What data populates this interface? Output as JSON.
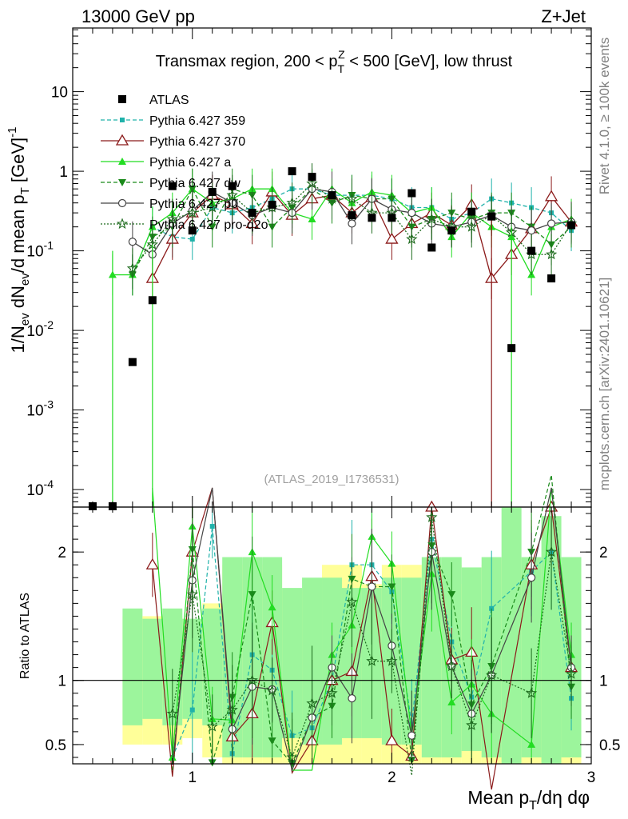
{
  "header": {
    "energy_label": "13000 GeV pp",
    "process_label": "Z+Jet"
  },
  "side_labels": {
    "rivet": "Rivet 4.1.0, ≥ 100k events",
    "mcplots": "mcplots.cern.ch [arXiv:2401.10621]"
  },
  "chart_data": {
    "type": "line",
    "title": "Transmax region, 200 < p_T^Z < 500 [GeV], low thrust",
    "watermark": "(ATLAS_2019_I1736531)",
    "xlabel": "Mean p_T/dη dφ",
    "ylabel_main": "1/N_ev dN_ev/d mean p_T [GeV]^-1",
    "ylabel_ratio": "Ratio to ATLAS",
    "xlim": [
      0.4,
      3.0
    ],
    "ylim_main_log10": [
      -4.22,
      1.8
    ],
    "ylim_ratio": [
      0.35,
      2.35
    ],
    "x_ticks": [
      1,
      2,
      3
    ],
    "ratio_ticks": [
      0.5,
      1,
      2
    ],
    "main_ticks": [
      {
        "exp": 1,
        "label": "10"
      },
      {
        "exp": 0,
        "label": "1"
      },
      {
        "exp": -1,
        "label": "10^-1"
      },
      {
        "exp": -2,
        "label": "10^-2"
      },
      {
        "exp": -3,
        "label": "10^-3"
      },
      {
        "exp": -4,
        "label": "10^-4"
      }
    ],
    "x": [
      0.5,
      0.6,
      0.7,
      0.8,
      0.9,
      1.0,
      1.1,
      1.2,
      1.3,
      1.4,
      1.5,
      1.6,
      1.7,
      1.8,
      1.9,
      2.0,
      2.1,
      2.2,
      2.3,
      2.4,
      2.5,
      2.6,
      2.7,
      2.8,
      2.9
    ],
    "data": {
      "name": "ATLAS",
      "values": [
        5e-05,
        5e-05,
        0.004,
        0.024,
        0.65,
        0.18,
        0.55,
        0.65,
        0.3,
        0.38,
        1.0,
        0.85,
        0.5,
        0.28,
        0.26,
        0.26,
        0.53,
        0.11,
        0.18,
        0.31,
        0.27,
        0.006,
        0.1,
        0.045,
        0.21
      ],
      "band_inner": [
        0,
        0,
        0.35,
        0.3,
        0.35,
        0.3,
        0.35,
        0.6,
        0.6,
        0.6,
        0.45,
        0.5,
        0.5,
        0.45,
        0.45,
        0.5,
        0.5,
        0.6,
        0.6,
        0.55,
        0.6,
        0.95,
        0.6,
        0.8,
        0.6
      ],
      "band_outer": [
        0,
        0,
        0.5,
        0.5,
        0.5,
        0.45,
        0.6,
        0.9,
        0.9,
        0.9,
        0.7,
        0.7,
        0.9,
        0.9,
        0.75,
        0.9,
        0.9,
        0.9,
        0.9,
        0.75,
        0.9,
        0.95,
        0.9,
        0.9,
        0.9
      ]
    },
    "series": [
      {
        "name": "Pythia 6.427 359",
        "color": "#20b2aa",
        "dash": "5,3",
        "marker": "square",
        "values": [
          null,
          null,
          0.05,
          0.2,
          0.15,
          0.14,
          0.35,
          0.3,
          0.35,
          0.45,
          0.6,
          0.6,
          0.5,
          0.5,
          0.5,
          0.45,
          0.35,
          0.35,
          0.25,
          0.3,
          0.45,
          0.4,
          0.35,
          0.3,
          0.18
        ]
      },
      {
        "name": "Pythia 6.427 370",
        "color": "#8b1a1a",
        "dash": "",
        "marker": "triangle-open",
        "values": [
          null,
          null,
          null,
          0.045,
          0.14,
          0.3,
          0.5,
          0.38,
          0.22,
          0.55,
          0.28,
          0.45,
          0.5,
          0.3,
          0.47,
          0.14,
          0.22,
          0.3,
          0.21,
          0.38,
          0.045,
          0.09,
          0.19,
          0.48,
          0.23
        ]
      },
      {
        "name": "Pythia 6.427 a",
        "color": "#22dd22",
        "dash": "",
        "marker": "triangle-up",
        "values": [
          null,
          0.05,
          0.05,
          0.2,
          0.3,
          0.6,
          0.4,
          0.45,
          0.6,
          0.6,
          0.3,
          0.25,
          0.6,
          0.4,
          0.55,
          0.5,
          0.3,
          0.35,
          0.15,
          0.3,
          0.2,
          0.15,
          0.05,
          0.2,
          0.25
        ]
      },
      {
        "name": "Pythia 6.427 dw",
        "color": "#1a8a1a",
        "dash": "5,3",
        "marker": "triangle-down",
        "values": [
          null,
          null,
          0.05,
          0.15,
          0.2,
          0.6,
          0.2,
          0.6,
          0.5,
          0.2,
          0.35,
          0.6,
          0.4,
          0.5,
          0.45,
          0.45,
          0.2,
          0.25,
          0.3,
          0.25,
          0.3,
          0.3,
          0.2,
          0.12,
          0.2
        ]
      },
      {
        "name": "Pythia 6.427 p0",
        "color": "#444444",
        "dash": "",
        "marker": "circle-open",
        "values": [
          null,
          null,
          0.13,
          0.09,
          0.22,
          0.32,
          0.55,
          0.4,
          0.28,
          0.35,
          0.3,
          0.6,
          0.55,
          0.22,
          0.45,
          0.33,
          0.3,
          0.22,
          0.2,
          0.23,
          0.28,
          0.2,
          0.18,
          0.22,
          0.23
        ]
      },
      {
        "name": "Pythia 6.427 pro-q2o",
        "color": "#1e6b1e",
        "dash": "2,2",
        "marker": "star",
        "values": [
          null,
          null,
          0.06,
          0.12,
          0.25,
          0.3,
          0.35,
          0.5,
          0.3,
          0.35,
          0.4,
          0.7,
          0.45,
          0.45,
          0.3,
          0.3,
          0.14,
          0.25,
          0.2,
          0.2,
          0.28,
          0.17,
          0.09,
          0.09,
          0.22
        ]
      }
    ],
    "ratio_values": [
      [
        null,
        null,
        null,
        null,
        0.4,
        0.77,
        2.2,
        0.43,
        1.2,
        1.08,
        0.57,
        0.63,
        1.0,
        1.9,
        1.9,
        1.69,
        0.66,
        2.1,
        1.3,
        0.87,
        1.56,
        null,
        1.85,
        2.0,
        0.86
      ],
      [
        null,
        null,
        null,
        1.9,
        0.25,
        2.0,
        2.5,
        0.56,
        0.74,
        1.45,
        0.28,
        0.53,
        1.0,
        1.07,
        1.81,
        0.53,
        0.41,
        2.35,
        1.16,
        1.22,
        0.15,
        null,
        1.9,
        2.35,
        1.1
      ],
      [
        null,
        null,
        null,
        2.5,
        0.4,
        2.2,
        0.7,
        0.69,
        2.0,
        1.57,
        0.3,
        0.3,
        1.2,
        1.43,
        2.12,
        1.91,
        0.57,
        1.83,
        0.83,
        0.97,
        0.74,
        null,
        0.5,
        2.5,
        1.2
      ]
    ],
    "ratio_series_names": [
      "Pythia 6.427 359",
      "Pythia 6.427 370",
      "Pythia 6.427 a",
      "Pythia 6.427 dw",
      "Pythia 6.427 p0",
      "Pythia 6.427 pro-q2o"
    ],
    "ratio_extra": [
      [
        null,
        null,
        null,
        null,
        0.3,
        2.02,
        0.36,
        0.87,
        1.67,
        0.53,
        0.35,
        0.71,
        0.8,
        1.79,
        1.73,
        1.73,
        0.38,
        2.05,
        1.67,
        0.81,
        1.11,
        null,
        2.0,
        2.67,
        0.95
      ],
      [
        null,
        null,
        null,
        null,
        0.34,
        1.78,
        2.5,
        0.62,
        0.95,
        0.93,
        0.3,
        0.71,
        1.1,
        0.86,
        1.73,
        1.27,
        0.57,
        2.0,
        1.11,
        0.74,
        1.04,
        null,
        1.8,
        2.5,
        1.1
      ],
      [
        null,
        null,
        null,
        null,
        0.74,
        1.67,
        0.64,
        0.77,
        1.0,
        0.92,
        0.4,
        0.82,
        0.9,
        1.61,
        1.15,
        1.15,
        0.26,
        2.27,
        1.11,
        0.65,
        1.04,
        null,
        0.9,
        2.0,
        1.05
      ]
    ]
  }
}
